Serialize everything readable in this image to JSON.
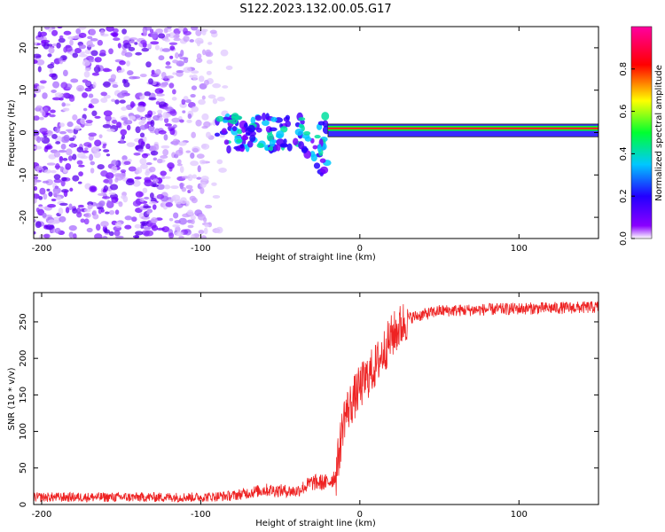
{
  "page": {
    "title": "S122.2023.132.00.05.G17"
  },
  "colors": {
    "snr_line": "#ee2222",
    "background": "#ffffff",
    "axis": "#000000",
    "spectrogram_scale": [
      "#ffffff",
      "#8a00ff",
      "#2200ff",
      "#00c8ff",
      "#00ff30",
      "#ffff00",
      "#ff0000",
      "#ff00a0"
    ]
  },
  "chart_data": [
    {
      "type": "heatmap",
      "title": "",
      "xlabel": "Height of straight line (km)",
      "ylabel": "Frequency (Hz)",
      "xlim": [
        -205,
        150
      ],
      "ylim": [
        -25,
        25
      ],
      "xticks": [
        -200,
        -100,
        0,
        100
      ],
      "yticks": [
        -20,
        -10,
        0,
        10,
        20
      ],
      "colorbar": {
        "label": "Normalized spectral amplitude",
        "range": [
          0,
          1
        ],
        "ticks": [
          0.0,
          0.2,
          0.4,
          0.6,
          0.8
        ]
      },
      "features": [
        {
          "description": "scattered low-amplitude noise",
          "x_range": [
            -205,
            -80
          ],
          "freq_range": [
            -25,
            25
          ],
          "amplitude": 0.15
        },
        {
          "description": "fragmented signal trace",
          "x_range": [
            -90,
            -20
          ],
          "freq_range": [
            -14,
            8
          ],
          "amplitude": 0.35
        },
        {
          "description": "coherent carrier tone",
          "x_range": [
            -20,
            150
          ],
          "freq": 1,
          "amplitude": 0.95
        }
      ],
      "carrier_box": {
        "x_range": [
          -20,
          150
        ],
        "freq_range": [
          -1,
          2
        ]
      }
    },
    {
      "type": "line",
      "title": "",
      "xlabel": "Height of straight line (km)",
      "ylabel": "SNR (10 * v/v)",
      "xlim": [
        -205,
        150
      ],
      "ylim": [
        0,
        290
      ],
      "xticks": [
        -200,
        -100,
        0,
        100
      ],
      "yticks": [
        0,
        50,
        100,
        150,
        200,
        250
      ],
      "series": [
        {
          "x": [
            -205,
            -150,
            -100,
            -80,
            -60,
            -40,
            -30,
            -20,
            -15,
            -10,
            -5,
            0,
            10,
            20,
            30,
            50,
            100,
            150
          ],
          "y": [
            10,
            10,
            10,
            12,
            20,
            18,
            30,
            30,
            40,
            120,
            140,
            160,
            190,
            230,
            255,
            265,
            268,
            270
          ]
        }
      ]
    }
  ]
}
